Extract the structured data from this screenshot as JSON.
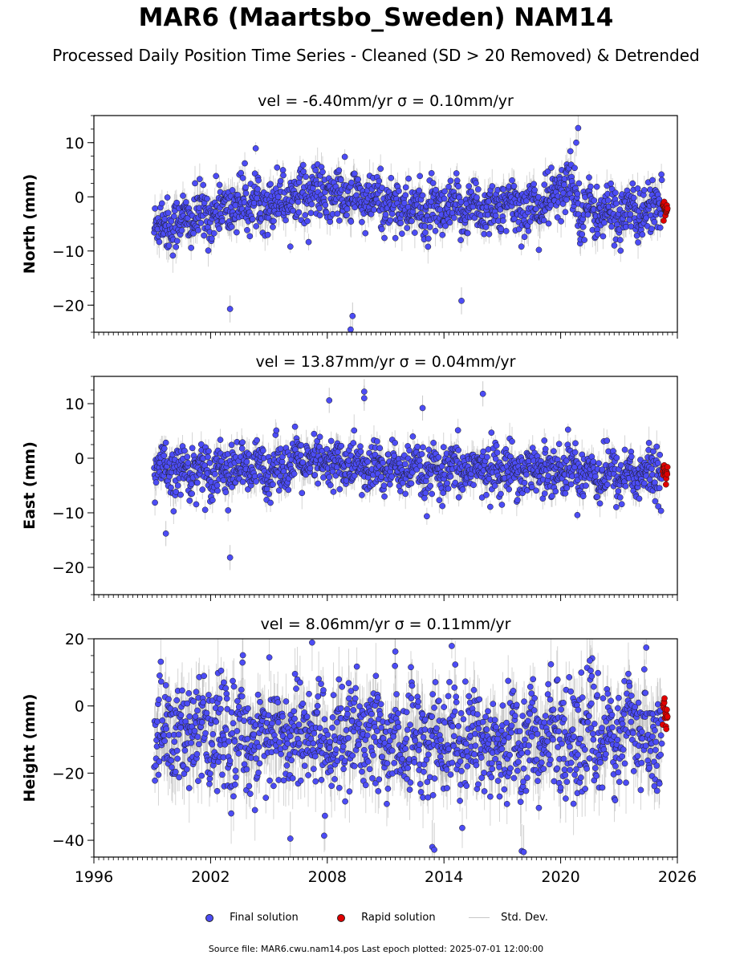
{
  "title": "MAR6 (Maartsbo_Sweden) NAM14",
  "subtitle": "Processed Daily Position Time Series - Cleaned (SD > 20 Removed) & Detrended",
  "legend": {
    "final": "Final solution",
    "rapid": "Rapid solution",
    "std": "Std. Dev."
  },
  "footer": "Source file: MAR6.cwu.nam14.pos  Last epoch plotted: 2025-07-01 12:00:00",
  "colors": {
    "final": "#4c4cf5",
    "rapid": "#e00000",
    "std": "#888888"
  },
  "chart_data": [
    {
      "type": "scatter",
      "title": "vel = -6.40mm/yr   σ = 0.10mm/yr",
      "ylabel": "North (mm)",
      "xlim": [
        1996,
        2026
      ],
      "ylim": [
        -25,
        15
      ],
      "xticks": [
        1996,
        2002,
        2008,
        2014,
        2020,
        2026
      ],
      "yticks": [
        10,
        0,
        -10,
        -20
      ],
      "data_start": 1999.1,
      "data_end": 2025.2,
      "rapid_start": 2025.25,
      "rapid_end": 2025.5,
      "series": [
        {
          "name": "Final solution",
          "x": [
            1999.2,
            2000.0,
            2001.0,
            2002.0,
            2003.0,
            2004.0,
            2005.0,
            2006.0,
            2007.0,
            2008.0,
            2009.0,
            2010.0,
            2011.0,
            2012.0,
            2013.0,
            2014.0,
            2015.0,
            2016.0,
            2017.0,
            2018.0,
            2019.0,
            2020.0,
            2020.5,
            2021.0,
            2022.0,
            2023.0,
            2024.0,
            2025.0
          ],
          "y": [
            -5,
            -5,
            -4,
            -3,
            -2,
            -1,
            -1,
            0,
            1,
            0,
            0,
            -1,
            -1,
            -2,
            -3,
            -3,
            -2,
            -2,
            -2,
            -2,
            -2,
            1,
            3,
            -2,
            -3,
            -3,
            -3,
            -2
          ]
        },
        {
          "name": "Rapid solution",
          "x": [
            2025.3,
            2025.5
          ],
          "y": [
            -2,
            -3
          ]
        }
      ],
      "outliers": {
        "x": [
          2003.0,
          2009.2,
          2009.3,
          2014.9,
          2020.9,
          2020.8
        ],
        "y": [
          -20.7,
          -24.5,
          -22,
          -19.2,
          12.7,
          10
        ]
      },
      "noise_sd": 2.5
    },
    {
      "type": "scatter",
      "title": "vel = 13.87mm/yr   σ = 0.04mm/yr",
      "ylabel": "East (mm)",
      "xlim": [
        1996,
        2026
      ],
      "ylim": [
        -25,
        15
      ],
      "xticks": [
        1996,
        2002,
        2008,
        2014,
        2020,
        2026
      ],
      "yticks": [
        10,
        0,
        -10,
        -20
      ],
      "data_start": 1999.1,
      "data_end": 2025.2,
      "rapid_start": 2025.25,
      "rapid_end": 2025.5,
      "series": [
        {
          "name": "Final solution",
          "x": [
            1999.2,
            2000.0,
            2001.0,
            2002.0,
            2003.0,
            2004.0,
            2005.0,
            2006.0,
            2007.0,
            2008.0,
            2009.0,
            2010.0,
            2011.0,
            2012.0,
            2013.0,
            2014.0,
            2015.0,
            2016.0,
            2017.0,
            2018.0,
            2019.0,
            2020.0,
            2021.0,
            2022.0,
            2023.0,
            2024.0,
            2025.0
          ],
          "y": [
            -2,
            -3,
            -2,
            -2,
            -2,
            -2,
            -2,
            -1,
            -1,
            -1,
            -1,
            -2,
            -2,
            -2,
            -3,
            -3,
            -2,
            -2,
            -2,
            -2,
            -2,
            -2,
            -2,
            -3,
            -3,
            -3,
            -3
          ]
        },
        {
          "name": "Rapid solution",
          "x": [
            2025.3,
            2025.5
          ],
          "y": [
            -2,
            -3
          ]
        }
      ],
      "outliers": {
        "x": [
          2003.0,
          1999.7,
          2009.9,
          2009.9,
          2012.9,
          2016.0,
          2008.1
        ],
        "y": [
          -18.2,
          -13.8,
          12.2,
          11,
          9.2,
          11.8,
          10.6
        ]
      },
      "noise_sd": 2.3
    },
    {
      "type": "scatter",
      "title": "vel = 8.06mm/yr   σ = 0.11mm/yr",
      "ylabel": "Height (mm)",
      "xlim": [
        1996,
        2026
      ],
      "ylim": [
        -45,
        20
      ],
      "xticks": [
        1996,
        2002,
        2008,
        2014,
        2020,
        2026
      ],
      "xticklabels": [
        "1996",
        "2002",
        "2008",
        "2014",
        "2020",
        "2026"
      ],
      "yticks": [
        20,
        0,
        -20,
        -40
      ],
      "data_start": 1999.1,
      "data_end": 2025.2,
      "rapid_start": 2025.25,
      "rapid_end": 2025.5,
      "series": [
        {
          "name": "Final solution",
          "x": [
            1999.2,
            2000.0,
            2001.0,
            2002.0,
            2003.0,
            2004.0,
            2005.0,
            2006.0,
            2007.0,
            2008.0,
            2009.0,
            2010.0,
            2011.0,
            2012.0,
            2013.0,
            2014.0,
            2015.0,
            2016.0,
            2017.0,
            2018.0,
            2019.0,
            2020.0,
            2021.0,
            2022.0,
            2023.0,
            2024.0,
            2025.0
          ],
          "y": [
            -8,
            -8,
            -9,
            -9,
            -9,
            -9,
            -9,
            -9,
            -9,
            -10,
            -10,
            -10,
            -10,
            -10,
            -10,
            -10,
            -10,
            -10,
            -10,
            -10,
            -10,
            -9,
            -9,
            -9,
            -9,
            -8,
            -8
          ]
        },
        {
          "name": "Rapid solution",
          "x": [
            2025.3,
            2025.5
          ],
          "y": [
            -2,
            -5
          ]
        }
      ],
      "outliers": {
        "x": [
          2013.4,
          2013.5,
          2018.0,
          2018.1,
          2011.5,
          2021.5,
          2006.1
        ],
        "y": [
          -42,
          -42.8,
          -43.2,
          -43.5,
          16.2,
          13.5,
          -39.5
        ]
      },
      "noise_sd": 8.0
    }
  ]
}
